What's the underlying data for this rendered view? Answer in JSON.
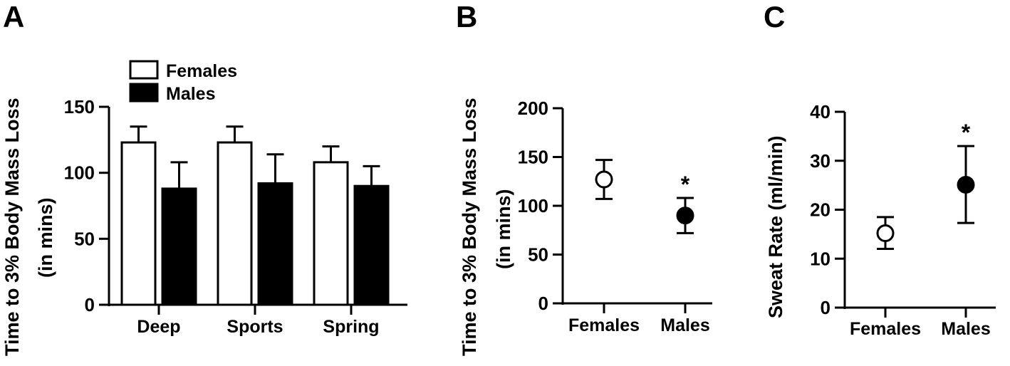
{
  "chart_data": [
    {
      "panel": "A",
      "type": "bar",
      "ylabel_line1": "Time to 3% Body Mass Loss",
      "ylabel_line2": "(in mins)",
      "categories": [
        "Deep",
        "Sports",
        "Spring"
      ],
      "series": [
        {
          "name": "Females",
          "values": [
            123,
            123,
            108
          ],
          "errors": [
            12,
            12,
            12
          ],
          "color": "#ffffff"
        },
        {
          "name": "Males",
          "values": [
            88,
            92,
            90
          ],
          "errors": [
            20,
            22,
            15
          ],
          "color": "#000000"
        }
      ],
      "ylim": [
        0,
        150
      ],
      "yticks": [
        0,
        50,
        100,
        150
      ],
      "legend": "top-left",
      "grid": false
    },
    {
      "panel": "B",
      "type": "scatter",
      "ylabel_line1": "Time to 3% Body Mass Loss",
      "ylabel_line2": "(in mins)",
      "categories": [
        "Females",
        "Males"
      ],
      "points": [
        {
          "x": "Females",
          "y": 127,
          "lower": 107,
          "upper": 147,
          "filled": false,
          "annotation": ""
        },
        {
          "x": "Males",
          "y": 90,
          "lower": 72,
          "upper": 108,
          "filled": true,
          "annotation": "*"
        }
      ],
      "ylim": [
        0,
        200
      ],
      "yticks": [
        0,
        50,
        100,
        150,
        200
      ],
      "grid": false
    },
    {
      "panel": "C",
      "type": "scatter",
      "ylabel_line1": "Sweat Rate (ml/min)",
      "ylabel_line2": "",
      "categories": [
        "Females",
        "Males"
      ],
      "points": [
        {
          "x": "Females",
          "y": 15.2,
          "lower": 12,
          "upper": 18.5,
          "filled": false,
          "annotation": ""
        },
        {
          "x": "Males",
          "y": 25.1,
          "lower": 17.3,
          "upper": 33,
          "filled": true,
          "annotation": "*"
        }
      ],
      "ylim": [
        0,
        40
      ],
      "yticks": [
        0,
        10,
        20,
        30,
        40
      ],
      "grid": false
    }
  ]
}
